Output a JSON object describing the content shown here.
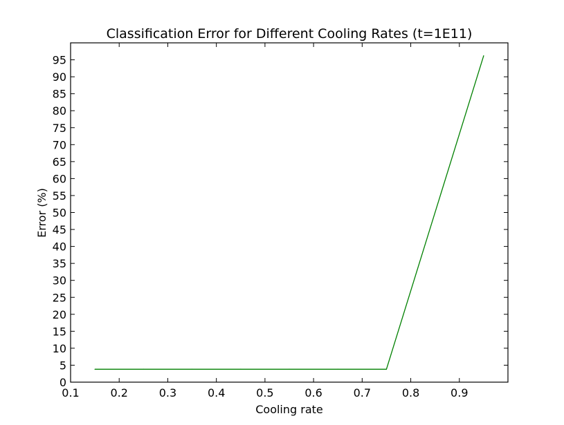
{
  "chart_data": {
    "type": "line",
    "title": "Classification Error for Different Cooling Rates (t=1E11)",
    "xlabel": "Cooling rate",
    "ylabel": "Error (%)",
    "xlim": [
      0.1,
      1.0
    ],
    "ylim": [
      0,
      100
    ],
    "x_ticks": [
      0.1,
      0.2,
      0.3,
      0.4,
      0.5,
      0.6,
      0.7,
      0.8,
      0.9
    ],
    "x_tick_labels": [
      "0.1",
      "0.2",
      "0.3",
      "0.4",
      "0.5",
      "0.6",
      "0.7",
      "0.8",
      "0.9"
    ],
    "y_ticks": [
      0,
      5,
      10,
      15,
      20,
      25,
      30,
      35,
      40,
      45,
      50,
      55,
      60,
      65,
      70,
      75,
      80,
      85,
      90,
      95
    ],
    "y_tick_labels": [
      "0",
      "5",
      "10",
      "15",
      "20",
      "25",
      "30",
      "35",
      "40",
      "45",
      "50",
      "55",
      "60",
      "65",
      "70",
      "75",
      "80",
      "85",
      "90",
      "95"
    ],
    "grid": false,
    "series": [
      {
        "color": "#008000",
        "x": [
          0.15,
          0.25,
          0.35,
          0.45,
          0.55,
          0.65,
          0.75,
          0.95
        ],
        "y": [
          3.8,
          3.8,
          3.8,
          3.8,
          3.8,
          3.8,
          3.8,
          96.2
        ]
      }
    ]
  }
}
